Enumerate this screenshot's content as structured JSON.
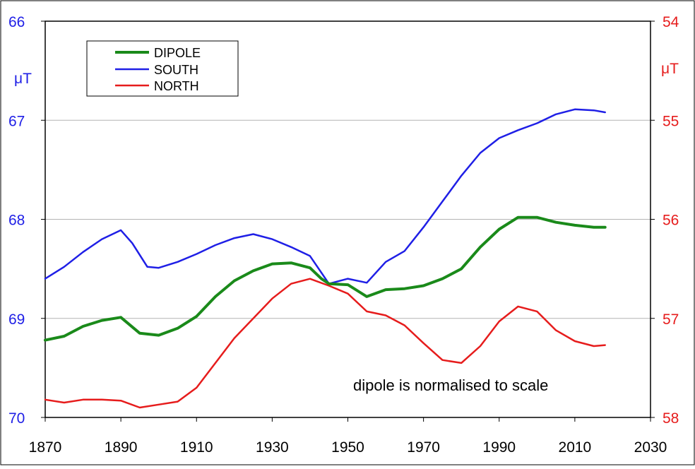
{
  "chart_data": {
    "type": "line",
    "title": "",
    "xlabel": "",
    "xlim": [
      1870,
      2030
    ],
    "x_ticks": [
      "1870",
      "1890",
      "1910",
      "1930",
      "1950",
      "1970",
      "1990",
      "2010",
      "2030"
    ],
    "y_left": {
      "unit": "μT",
      "range_top": 66,
      "range_bottom": 70,
      "ticks": [
        "66",
        "67",
        "68",
        "69",
        "70"
      ],
      "color": "#1f1fe6"
    },
    "y_right": {
      "unit": "μT",
      "range_top": 54,
      "range_bottom": 58,
      "ticks": [
        "54",
        "55",
        "56",
        "57",
        "58"
      ],
      "color": "#e61c1c"
    },
    "grid": true,
    "legend": {
      "placement": "top-left",
      "entries": [
        "DIPOLE",
        "SOUTH",
        "NORTH"
      ]
    },
    "annotation": "dipole  is normalised to scale",
    "series": [
      {
        "name": "DIPOLE",
        "color": "#1a8a1a",
        "axis": "left",
        "x": [
          1870,
          1875,
          1880,
          1885,
          1890,
          1895,
          1900,
          1905,
          1910,
          1915,
          1920,
          1925,
          1930,
          1935,
          1940,
          1943,
          1945,
          1950,
          1955,
          1960,
          1965,
          1970,
          1975,
          1980,
          1985,
          1990,
          1995,
          2000,
          2005,
          2010,
          2015,
          2018
        ],
        "values": [
          69.22,
          69.18,
          69.08,
          69.02,
          68.99,
          69.15,
          69.17,
          69.1,
          68.98,
          68.78,
          68.62,
          68.52,
          68.45,
          68.44,
          68.49,
          68.6,
          68.65,
          68.66,
          68.78,
          68.71,
          68.7,
          68.67,
          68.6,
          68.5,
          68.28,
          68.1,
          67.98,
          67.98,
          68.03,
          68.06,
          68.08,
          68.08
        ]
      },
      {
        "name": "SOUTH",
        "color": "#1f1fe6",
        "axis": "left",
        "x": [
          1870,
          1875,
          1880,
          1885,
          1890,
          1893,
          1897,
          1900,
          1905,
          1910,
          1915,
          1920,
          1925,
          1930,
          1935,
          1940,
          1945,
          1950,
          1955,
          1960,
          1965,
          1970,
          1975,
          1980,
          1985,
          1990,
          1995,
          2000,
          2005,
          2010,
          2015,
          2018
        ],
        "values": [
          68.6,
          68.48,
          68.33,
          68.2,
          68.11,
          68.24,
          68.48,
          68.49,
          68.43,
          68.35,
          68.26,
          68.19,
          68.15,
          68.2,
          68.28,
          68.37,
          68.65,
          68.6,
          68.64,
          68.43,
          68.32,
          68.08,
          67.82,
          67.56,
          67.33,
          67.18,
          67.1,
          67.03,
          66.94,
          66.89,
          66.9,
          66.92
        ]
      },
      {
        "name": "NORTH",
        "color": "#e61c1c",
        "axis": "right",
        "x": [
          1870,
          1875,
          1880,
          1885,
          1890,
          1895,
          1900,
          1905,
          1910,
          1915,
          1920,
          1925,
          1930,
          1935,
          1940,
          1945,
          1950,
          1955,
          1960,
          1965,
          1970,
          1975,
          1980,
          1985,
          1990,
          1995,
          2000,
          2005,
          2010,
          2015,
          2018
        ],
        "values": [
          57.82,
          57.85,
          57.82,
          57.82,
          57.83,
          57.9,
          57.87,
          57.84,
          57.7,
          57.45,
          57.2,
          57.0,
          56.8,
          56.65,
          56.6,
          56.67,
          56.75,
          56.93,
          56.97,
          57.07,
          57.25,
          57.42,
          57.45,
          57.28,
          57.03,
          56.88,
          56.93,
          57.12,
          57.23,
          57.28,
          57.27
        ]
      }
    ]
  }
}
